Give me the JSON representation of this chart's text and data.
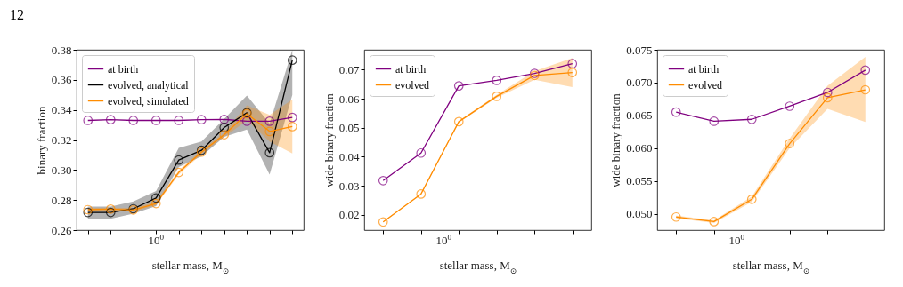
{
  "chart_data": [
    {
      "type": "line",
      "title": "12",
      "annotations": [
        "10$^{0}$"
      ],
      "ylabel": "binary fraction",
      "xlabel": "stellar mass, M$_{⊙}$",
      "marker": "circle",
      "legend": "top left",
      "ylim": [
        0.26,
        0.38
      ],
      "yticks": [
        0.26,
        0.28,
        {
          "value": 0.3,
          "label": "0.30"
        },
        0.32,
        0.34,
        0.36,
        0.38
      ],
      "categories": [
        null,
        null,
        null,
        null,
        null,
        null,
        null,
        null,
        null,
        null
      ],
      "series": [
        {
          "name": "at birth",
          "color": "#800080",
          "values": [
            0.333,
            0.3335,
            0.333,
            0.333,
            0.333,
            0.3335,
            0.3337,
            0.3325,
            0.3325,
            0.335
          ]
        },
        {
          "name": "evolved, analytical",
          "color": "#000000",
          "values": [
            0.2718,
            0.2718,
            0.2742,
            0.2814,
            0.3066,
            0.3131,
            0.3283,
            0.3381,
            0.3115,
            0.3731
          ],
          "lower": [
            0.2675,
            0.2675,
            0.271,
            0.276,
            0.302,
            0.309,
            0.322,
            0.327,
            0.297,
            0.35
          ],
          "upper": [
            0.2757,
            0.2757,
            0.279,
            0.286,
            0.3147,
            0.319,
            0.334,
            0.3495,
            0.331,
            0.38
          ]
        },
        {
          "name": "evolved, simulated",
          "color": "#ff8c00",
          "values": [
            0.2736,
            0.274,
            0.2734,
            0.2777,
            0.2984,
            0.3119,
            0.3235,
            0.3375,
            0.3257,
            0.3289
          ],
          "lower": [
            0.2725,
            0.273,
            0.2722,
            0.2765,
            0.297,
            0.3105,
            0.322,
            0.333,
            0.319,
            0.311
          ],
          "upper": [
            0.2747,
            0.275,
            0.2746,
            0.279,
            0.2998,
            0.3133,
            0.325,
            0.343,
            0.3367,
            0.3469
          ]
        }
      ]
    },
    {
      "type": "line",
      "annotations": [
        "10$^{0}$"
      ],
      "ylabel": "wide binary fraction",
      "xlabel": "stellar mass, M$_{⊙}$",
      "marker": "circle",
      "legend": "top left",
      "ylim": [
        0.0148,
        0.0768
      ],
      "yticks": [
        0.02,
        0.03,
        0.04,
        0.05,
        0.06,
        0.07
      ],
      "categories": [
        null,
        null,
        null,
        null,
        null,
        null
      ],
      "series": [
        {
          "name": "at birth",
          "color": "#800080",
          "values": [
            0.0318,
            0.0413,
            0.0644,
            0.0663,
            0.0687,
            0.072
          ]
        },
        {
          "name": "evolved",
          "color": "#ff8c00",
          "values": [
            0.0176,
            0.0272,
            0.0521,
            0.0608,
            0.068,
            0.069
          ],
          "lower": [
            0.0174,
            0.027,
            0.0518,
            0.0603,
            0.0665,
            0.064
          ],
          "upper": [
            0.0178,
            0.0274,
            0.0524,
            0.0613,
            0.0695,
            0.074
          ]
        }
      ]
    },
    {
      "type": "line",
      "annotations": [
        "10$^{0}$"
      ],
      "ylabel": "wide binary fraction",
      "xlabel": "stellar mass, M$_{⊙}$",
      "marker": "circle",
      "legend": "top left",
      "ylim": [
        0.0475,
        0.075
      ],
      "yticks": [
        {
          "value": 0.05,
          "label": "0.050"
        },
        {
          "value": 0.055,
          "label": "0.055"
        },
        {
          "value": 0.06,
          "label": "0.060"
        },
        {
          "value": 0.065,
          "label": "0.065"
        },
        {
          "value": 0.07,
          "label": "0.070"
        },
        {
          "value": 0.075,
          "label": "0.075"
        }
      ],
      "categories": [
        null,
        null,
        null,
        null,
        null,
        null
      ],
      "series": [
        {
          "name": "at birth",
          "color": "#800080",
          "values": [
            0.0655,
            0.0641,
            0.0644,
            0.0664,
            0.0685,
            0.0719
          ]
        },
        {
          "name": "evolved",
          "color": "#ff8c00",
          "values": [
            0.0495,
            0.0488,
            0.0522,
            0.0607,
            0.0677,
            0.0689
          ],
          "lower": [
            0.0493,
            0.0486,
            0.0518,
            0.06,
            0.066,
            0.064
          ],
          "upper": [
            0.0497,
            0.049,
            0.0526,
            0.0615,
            0.0695,
            0.0739
          ]
        }
      ]
    }
  ]
}
